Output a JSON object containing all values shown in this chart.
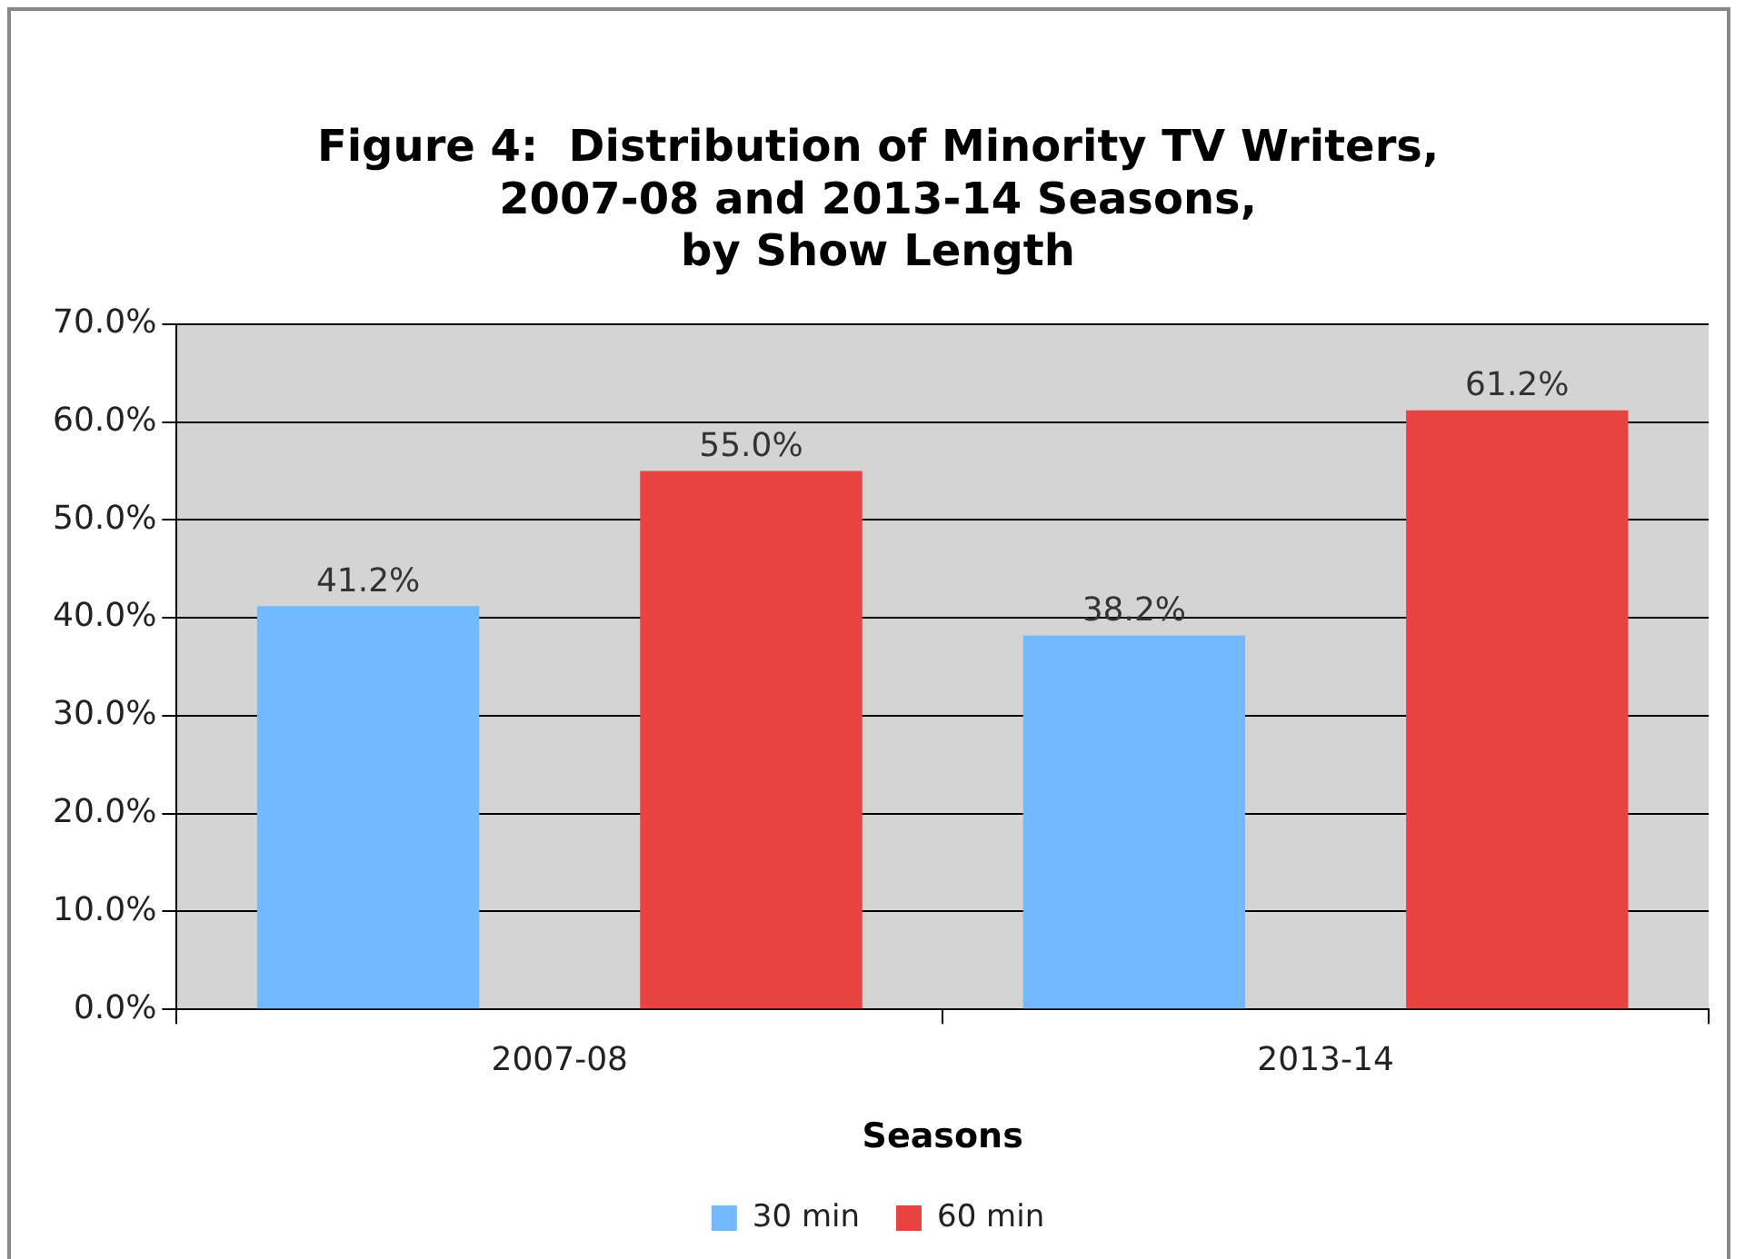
{
  "chart_data": {
    "type": "bar",
    "title": "Figure 4:  Distribution of Minority TV Writers,\n2007-08 and 2013-14 Seasons,\nby Show Length",
    "xlabel": "Seasons",
    "categories": [
      "2007-08",
      "2013-14"
    ],
    "series": [
      {
        "name": "30 min",
        "color": "#74b9ff",
        "values": [
          41.2,
          38.2
        ],
        "value_labels": [
          "41.2%",
          "38.2%"
        ]
      },
      {
        "name": "60 min",
        "color": "#e84340",
        "values": [
          55.0,
          61.2
        ],
        "value_labels": [
          "55.0%",
          "61.2%"
        ]
      }
    ],
    "ylim": [
      0,
      70
    ],
    "yticks": [
      {
        "value": 0,
        "label": "0.0%"
      },
      {
        "value": 10,
        "label": "10.0%"
      },
      {
        "value": 20,
        "label": "20.0%"
      },
      {
        "value": 30,
        "label": "30.0%"
      },
      {
        "value": 40,
        "label": "40.0%"
      },
      {
        "value": 50,
        "label": "50.0%"
      },
      {
        "value": 60,
        "label": "60.0%"
      },
      {
        "value": 70,
        "label": "70.0%"
      }
    ],
    "grid": "y",
    "legend": "bottom"
  }
}
